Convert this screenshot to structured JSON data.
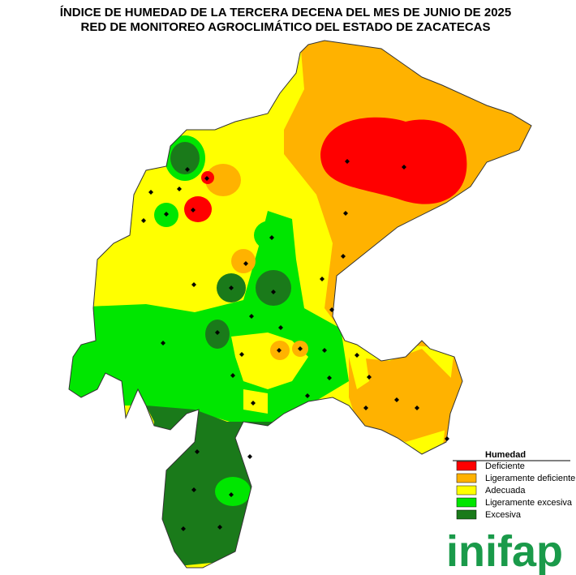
{
  "title": [
    "ÍNDICE DE HUMEDAD DE LA TERCERA DECENA DEL MES DE JUNIO DE 2025",
    "RED DE MONITOREO AGROCLIMÁTICO DEL ESTADO DE ZACATECAS"
  ],
  "legend": {
    "title": "Humedad",
    "items": [
      {
        "label": "Deficiente",
        "color": "#ff0000"
      },
      {
        "label": "Ligeramente deficiente",
        "color": "#ffb200"
      },
      {
        "label": "Adecuada",
        "color": "#ffff00"
      },
      {
        "label": "Ligeramente excesiva",
        "color": "#00e600"
      },
      {
        "label": "Excesiva",
        "color": "#1a7a1a"
      }
    ]
  },
  "logo": "inifap"
}
